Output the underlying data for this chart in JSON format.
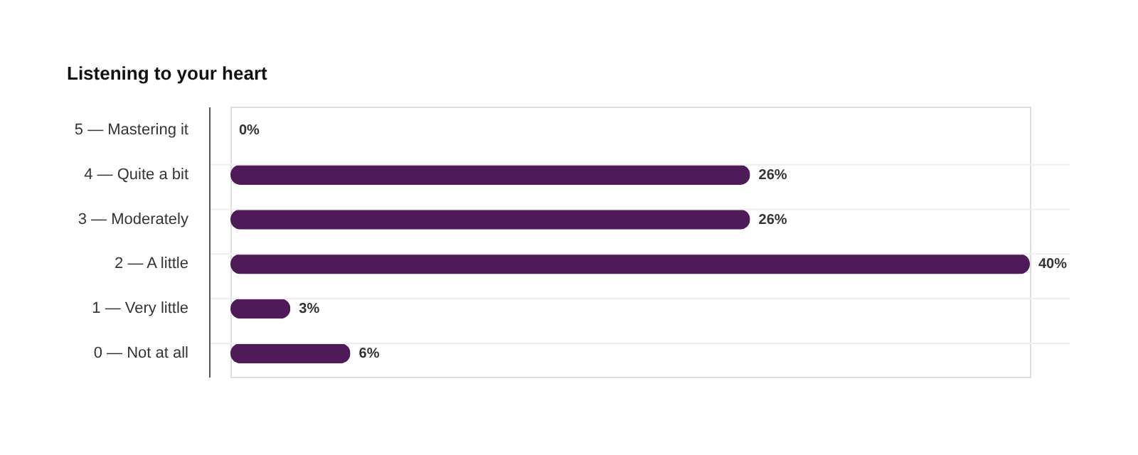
{
  "chart_data": {
    "type": "bar",
    "orientation": "horizontal",
    "title": "Listening to your heart",
    "categories": [
      "5  — Mastering it",
      "4 — Quite a bit",
      "3 — Moderately",
      "2 — A little",
      "1 — Very little",
      "0 — Not at all"
    ],
    "values": [
      0,
      26,
      26,
      40,
      3,
      6
    ],
    "value_labels": [
      "0%",
      "26%",
      "26%",
      "40%",
      "3%",
      "6%"
    ],
    "color": "#4f1a58",
    "grid": "y",
    "tick_labels": "y"
  }
}
